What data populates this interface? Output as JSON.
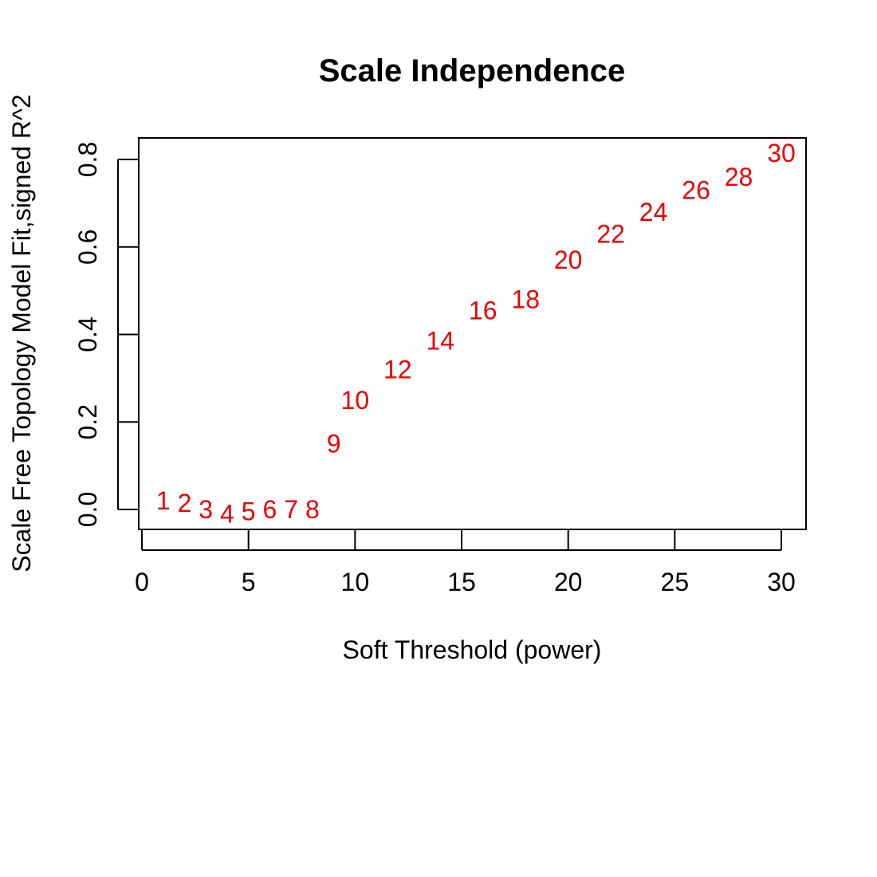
{
  "chart_data": {
    "type": "scatter",
    "title": "Scale Independence",
    "xlabel": "Soft Threshold (power)",
    "ylabel": "Scale Free Topology Model Fit,signed R^2",
    "xlim": [
      0,
      30
    ],
    "ylim": [
      0,
      0.8
    ],
    "x_ticks": [
      0,
      5,
      10,
      15,
      20,
      25,
      30
    ],
    "y_ticks": [
      0.0,
      0.2,
      0.4,
      0.6,
      0.8
    ],
    "x_tick_labels": [
      "0",
      "5",
      "10",
      "15",
      "20",
      "25",
      "30"
    ],
    "y_tick_labels": [
      "0.0",
      "0.2",
      "0.4",
      "0.6",
      "0.8"
    ],
    "grid": false,
    "marker": "text-label",
    "point_color": "#ee0000",
    "points": [
      {
        "label": "1",
        "x": 1,
        "y": 0.02
      },
      {
        "label": "2",
        "x": 2,
        "y": 0.015
      },
      {
        "label": "3",
        "x": 3,
        "y": 0.0
      },
      {
        "label": "4",
        "x": 4,
        "y": -0.01
      },
      {
        "label": "5",
        "x": 5,
        "y": -0.005
      },
      {
        "label": "6",
        "x": 6,
        "y": 0.0
      },
      {
        "label": "7",
        "x": 7,
        "y": 0.0
      },
      {
        "label": "8",
        "x": 8,
        "y": 0.0
      },
      {
        "label": "9",
        "x": 9,
        "y": 0.15
      },
      {
        "label": "10",
        "x": 10,
        "y": 0.25
      },
      {
        "label": "12",
        "x": 12,
        "y": 0.32
      },
      {
        "label": "14",
        "x": 14,
        "y": 0.385
      },
      {
        "label": "16",
        "x": 16,
        "y": 0.455
      },
      {
        "label": "18",
        "x": 18,
        "y": 0.48
      },
      {
        "label": "20",
        "x": 20,
        "y": 0.57
      },
      {
        "label": "22",
        "x": 22,
        "y": 0.63
      },
      {
        "label": "24",
        "x": 24,
        "y": 0.68
      },
      {
        "label": "26",
        "x": 26,
        "y": 0.73
      },
      {
        "label": "28",
        "x": 28,
        "y": 0.76
      },
      {
        "label": "30",
        "x": 30,
        "y": 0.815
      }
    ]
  }
}
